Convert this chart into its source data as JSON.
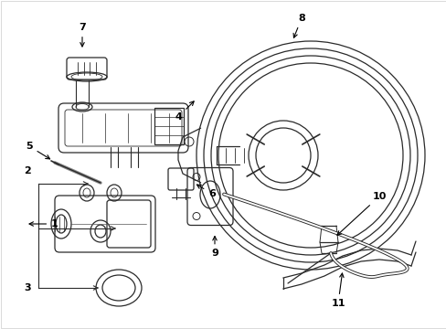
{
  "background_color": "#ffffff",
  "line_color": "#2a2a2a",
  "fig_w": 4.89,
  "fig_h": 3.6,
  "dpi": 100
}
